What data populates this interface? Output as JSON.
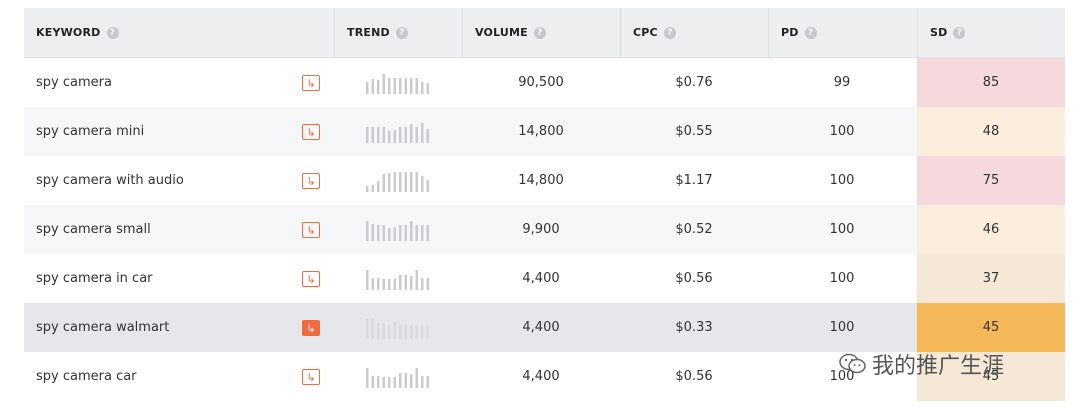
{
  "headers": {
    "keyword": "KEYWORD",
    "trend": "TREND",
    "volume": "VOLUME",
    "cpc": "CPC",
    "pd": "PD",
    "sd": "SD",
    "help_glyph": "?"
  },
  "action_glyph": "↳",
  "rows": [
    {
      "keyword": "spy camera",
      "volume": "90,500",
      "cpc": "$0.76",
      "pd": "99",
      "sd": "85",
      "sd_color": "#f6d9dc",
      "trend": [
        0.6,
        0.75,
        0.7,
        1.0,
        0.8,
        0.8,
        0.8,
        0.8,
        0.8,
        0.8,
        0.6,
        0.55
      ]
    },
    {
      "keyword": "spy camera mini",
      "volume": "14,800",
      "cpc": "$0.55",
      "pd": "100",
      "sd": "48",
      "sd_color": "#fbeedc",
      "trend": [
        0.8,
        0.8,
        0.8,
        0.8,
        0.6,
        0.65,
        0.8,
        0.8,
        0.95,
        0.8,
        1.0,
        0.7
      ]
    },
    {
      "keyword": "spy camera with audio",
      "volume": "14,800",
      "cpc": "$1.17",
      "pd": "100",
      "sd": "75",
      "sd_color": "#f6d9dc",
      "trend": [
        0.3,
        0.35,
        0.55,
        0.9,
        0.95,
        1.0,
        1.0,
        1.0,
        1.0,
        1.0,
        0.8,
        0.6
      ]
    },
    {
      "keyword": "spy camera small",
      "volume": "9,900",
      "cpc": "$0.52",
      "pd": "100",
      "sd": "46",
      "sd_color": "#fbeedc",
      "trend": [
        1.0,
        0.85,
        0.8,
        0.8,
        0.65,
        0.7,
        0.8,
        0.8,
        1.0,
        0.8,
        0.8,
        0.8
      ]
    },
    {
      "keyword": "spy camera in car",
      "volume": "4,400",
      "cpc": "$0.56",
      "pd": "100",
      "sd": "37",
      "sd_color": "#f5e8d6",
      "trend": [
        1.0,
        0.6,
        0.6,
        0.55,
        0.55,
        0.55,
        0.75,
        0.75,
        0.7,
        1.0,
        0.6,
        0.6
      ]
    },
    {
      "keyword": "spy camera walmart",
      "volume": "4,400",
      "cpc": "$0.33",
      "pd": "100",
      "sd": "45",
      "sd_color": "#f5b858",
      "trend": [
        1.0,
        1.0,
        0.8,
        0.8,
        0.7,
        0.85,
        0.7,
        0.7,
        0.7,
        0.7,
        0.7,
        0.7
      ]
    },
    {
      "keyword": "spy camera car",
      "volume": "4,400",
      "cpc": "$0.56",
      "pd": "100",
      "sd": "45",
      "sd_color": "#f5e8d6",
      "trend": [
        1.0,
        0.6,
        0.6,
        0.55,
        0.55,
        0.55,
        0.75,
        0.75,
        0.7,
        1.0,
        0.6,
        0.6
      ]
    }
  ],
  "selected_row": 5,
  "watermark": "我的推广生涯",
  "colors": {
    "accent": "#f26a3d",
    "trend_bar": "#c8cccf",
    "trend_bar_selected": "#d8dbde"
  }
}
